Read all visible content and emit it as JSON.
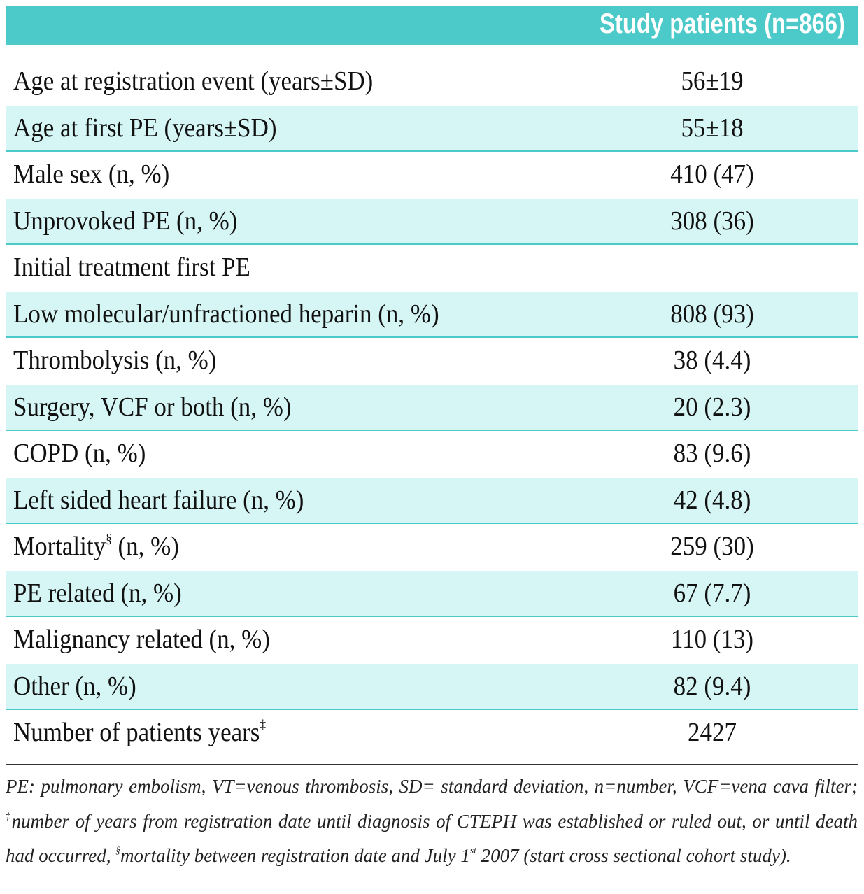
{
  "table": {
    "column_header": "Study patients (n=866)",
    "rows": [
      {
        "label": "Age at registration event (years±SD)",
        "value": "56±19"
      },
      {
        "label": "Age at first PE (years±SD)",
        "value": "55±18"
      },
      {
        "label": "Male sex (n, %)",
        "value": "410 (47)"
      },
      {
        "label": "Unprovoked PE (n, %)",
        "value": "308 (36)"
      },
      {
        "label": "Initial treatment first PE"
      },
      {
        "label": "Low molecular/unfractioned heparin (n, %)",
        "value": "808 (93)"
      },
      {
        "label": "Thrombolysis (n, %)",
        "value": "38 (4.4)"
      },
      {
        "label": "Surgery, VCF or both (n, %)",
        "value": "20 (2.3)"
      },
      {
        "label": "COPD (n, %)",
        "value": "83 (9.6)"
      },
      {
        "label": "Left sided heart failure (n, %)",
        "value": "42 (4.8)"
      },
      {
        "label": "Mortality",
        "sup": "§",
        "label_rest": " (n, %)",
        "value": "259 (30)"
      },
      {
        "label": "PE related (n, %)",
        "value": "67 (7.7)"
      },
      {
        "label": "Malignancy related (n, %)",
        "value": "110 (13)"
      },
      {
        "label": "Other (n, %)",
        "value": "82 (9.4)"
      },
      {
        "label": "Number of patients years",
        "sup": "‡",
        "value": "2427"
      }
    ]
  },
  "footnote": [
    {
      "text": "PE: pulmonary embolism, VT=venous thrombosis, SD= standard deviation, n=number, VCF=vena cava filter; "
    },
    {
      "text": "‡",
      "sup": true
    },
    {
      "text": "number of years from registration date until diagnosis of CTEPH was established or ruled out, or until death had occurred, "
    },
    {
      "text": "§",
      "sup": true
    },
    {
      "text": "mortality between registration date and July 1"
    },
    {
      "text": "st",
      "sup": true
    },
    {
      "text": " 2007 (start cross sectional cohort study)."
    }
  ]
}
